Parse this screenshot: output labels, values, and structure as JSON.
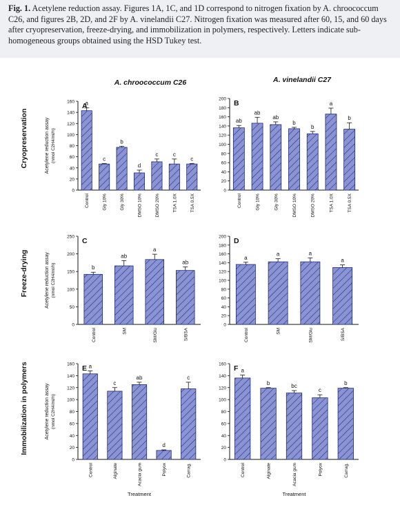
{
  "caption": {
    "label": "Fig. 1.",
    "text": " Acetylene reduction assay. Figures 1A, 1C, and 1D correspond to nitrogen fixation by A. chroococcum C26, and figures 2B, 2D, and 2F by A. vinelandii C27. Nitrogen fixation was measured after 60, 15, and 60 days after cryopreservation, freeze-drying, and immobilization in polymers, respectively. Letters indicate sub-homogeneous groups obtained using the HSD Tukey test."
  },
  "column_titles": [
    "A. chroococcum C26",
    "A. vinelandii C27"
  ],
  "row_titles": [
    "Cryopreservation",
    "Freeze-drying",
    "Immobilization in polymers"
  ],
  "ylabel_line1": "Acetylene reduction assay",
  "ylabel_line2": "(nmol C2H4/ml/h)",
  "xlabel": "Treatment",
  "colors": {
    "bar_fill": "#8a94d4",
    "bar_stroke": "#1e2a7a",
    "hatch": "#2a3580"
  },
  "chart_data": [
    {
      "panel": "A",
      "type": "bar",
      "ylim": [
        0,
        160
      ],
      "yticks": [
        0,
        20,
        40,
        60,
        80,
        100,
        120,
        140,
        160
      ],
      "categories": [
        "Control",
        "Gly 10%",
        "Gly 30%",
        "DMSO 10%",
        "DMSO 20%",
        "TSA 1.0X",
        "TSA 0.5X"
      ],
      "values": [
        143,
        47,
        77,
        31,
        51,
        47,
        47
      ],
      "errors": [
        5,
        1,
        2,
        5,
        5,
        9,
        1
      ],
      "letters": [
        "a",
        "c",
        "b",
        "d",
        "c",
        "c",
        "c"
      ]
    },
    {
      "panel": "B",
      "type": "bar",
      "ylim": [
        0,
        200
      ],
      "yticks": [
        0,
        20,
        40,
        60,
        80,
        100,
        120,
        140,
        160,
        180,
        200
      ],
      "categories": [
        "Control",
        "Gly 10%",
        "Gly 30%",
        "DMSO 10%",
        "DMSO 20%",
        "TSA 1.0X",
        "TSA 0.5X"
      ],
      "values": [
        136,
        146,
        143,
        134,
        123,
        166,
        133
      ],
      "errors": [
        5,
        13,
        6,
        3,
        5,
        13,
        14
      ],
      "letters": [
        "ab",
        "ab",
        "ab",
        "b",
        "b",
        "a",
        "b"
      ]
    },
    {
      "panel": "C",
      "type": "bar",
      "ylim": [
        0,
        250
      ],
      "yticks": [
        0,
        50,
        100,
        150,
        200,
        250
      ],
      "categories": [
        "Control",
        "SM",
        "SM/Glu",
        "S/BSA"
      ],
      "values": [
        142,
        166,
        184,
        153
      ],
      "errors": [
        6,
        15,
        15,
        10
      ],
      "letters": [
        "b",
        "ab",
        "a",
        "ab"
      ]
    },
    {
      "panel": "D",
      "type": "bar",
      "ylim": [
        0,
        200
      ],
      "yticks": [
        0,
        20,
        40,
        60,
        80,
        100,
        120,
        140,
        160,
        180,
        200
      ],
      "categories": [
        "Control",
        "SM",
        "SM/Glu",
        "S/BSA"
      ],
      "values": [
        136,
        142,
        142,
        129
      ],
      "errors": [
        5,
        7,
        9,
        6
      ],
      "letters": [
        "a",
        "a",
        "a",
        "a"
      ]
    },
    {
      "panel": "E",
      "type": "bar",
      "ylim": [
        0,
        160
      ],
      "yticks": [
        0,
        20,
        40,
        60,
        80,
        100,
        120,
        140,
        160
      ],
      "categories": [
        "Control",
        "Alginate",
        "Acacia gum",
        "Polyox",
        "Carrag."
      ],
      "values": [
        143,
        114,
        125,
        15,
        118
      ],
      "errors": [
        5,
        6,
        4,
        1,
        11
      ],
      "letters": [
        "a",
        "c",
        "ab",
        "d",
        "c"
      ]
    },
    {
      "panel": "F",
      "type": "bar",
      "ylim": [
        0,
        160
      ],
      "yticks": [
        0,
        20,
        40,
        60,
        80,
        100,
        120,
        140,
        160
      ],
      "categories": [
        "Control",
        "Alginate",
        "Acacia gum",
        "Polyox",
        "Carrag."
      ],
      "values": [
        136,
        119,
        111,
        103,
        119
      ],
      "errors": [
        5,
        1,
        4,
        5,
        1
      ],
      "letters": [
        "a",
        "b",
        "bc",
        "c",
        "b"
      ]
    }
  ]
}
